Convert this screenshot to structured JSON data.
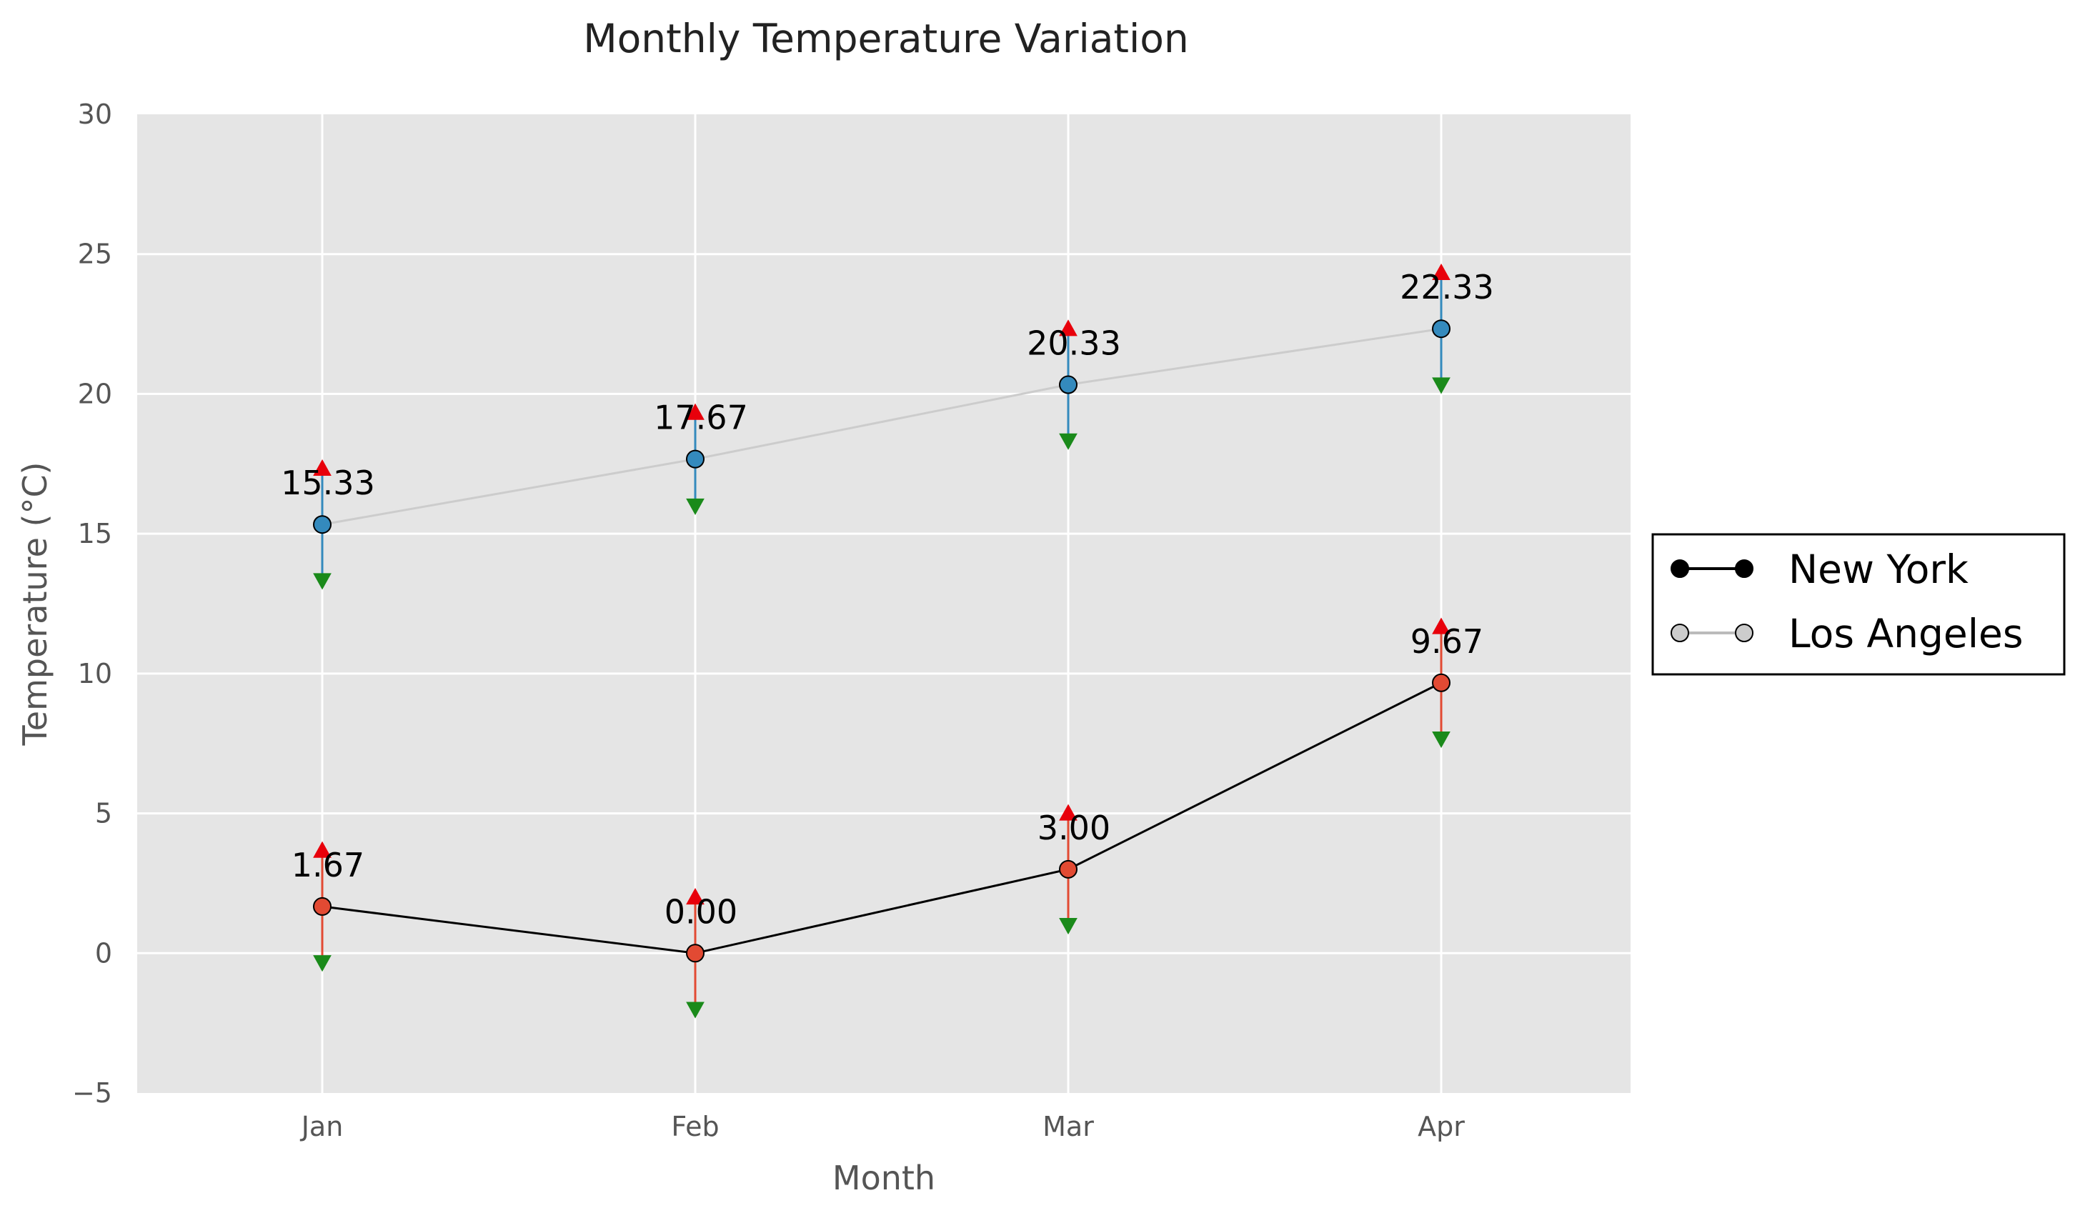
{
  "chart_data": {
    "type": "line",
    "title": "Monthly Temperature Variation",
    "xlabel": "Month",
    "ylabel": "Temperature (°C)",
    "categories": [
      "Jan",
      "Feb",
      "Mar",
      "Apr"
    ],
    "ylim": [
      -5,
      30
    ],
    "yticks": [
      -5,
      0,
      5,
      10,
      15,
      20,
      25,
      30
    ],
    "ytick_labels": [
      "−5",
      "0",
      "5",
      "10",
      "15",
      "20",
      "25",
      "30"
    ],
    "grid": true,
    "legend_position": "right",
    "series": [
      {
        "name": "New York",
        "values": [
          1.67,
          0.0,
          3.0,
          9.67
        ],
        "value_labels": [
          "1.67",
          "0.00",
          "3.00",
          "9.67"
        ],
        "max": [
          3.67,
          2.0,
          5.0,
          11.67
        ],
        "min": [
          -0.33,
          -2.0,
          1.0,
          7.67
        ],
        "line_color": "#000000",
        "marker_color": "#e24a33",
        "legend_marker_color": "#000000"
      },
      {
        "name": "Los Angeles",
        "values": [
          15.33,
          17.67,
          20.33,
          22.33
        ],
        "value_labels": [
          "15.33",
          "17.67",
          "20.33",
          "22.33"
        ],
        "max": [
          17.33,
          19.33,
          22.33,
          24.33
        ],
        "min": [
          13.33,
          16.0,
          18.33,
          20.33
        ],
        "line_color": "#cccccc",
        "marker_color": "#348abd",
        "legend_marker_color": "#cccccc"
      }
    ],
    "colors": {
      "plot_background": "#e5e5e5",
      "grid": "#ffffff",
      "max_marker": "#e8000b",
      "min_marker": "#1a8a1a"
    }
  }
}
